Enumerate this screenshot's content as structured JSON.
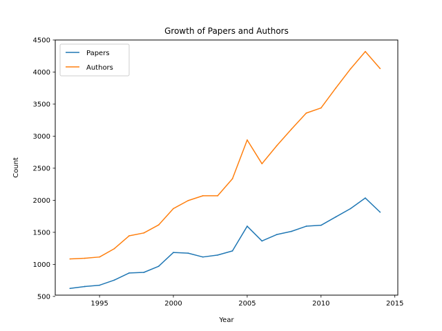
{
  "chart_data": {
    "type": "line",
    "title": "Growth of Papers and Authors",
    "xlabel": "Year",
    "ylabel": "Count",
    "xlim": [
      1992.0,
      2015.2
    ],
    "ylim": [
      520,
      4500
    ],
    "xticks": [
      1995,
      2000,
      2005,
      2010,
      2015
    ],
    "yticks": [
      500,
      1000,
      1500,
      2000,
      2500,
      3000,
      3500,
      4000,
      4500
    ],
    "legend": "top-left",
    "grid": false,
    "x": [
      1993,
      1994,
      1995,
      1996,
      1997,
      1998,
      1999,
      2000,
      2001,
      2002,
      2003,
      2004,
      2005,
      2006,
      2007,
      2008,
      2009,
      2010,
      2011,
      2012,
      2013,
      2014
    ],
    "series": [
      {
        "name": "Papers",
        "color": "#1f77b4",
        "values": [
          625,
          655,
          675,
          755,
          865,
          875,
          970,
          1185,
          1175,
          1115,
          1145,
          1210,
          1595,
          1365,
          1465,
          1515,
          1595,
          1610,
          1740,
          1870,
          2035,
          1815
        ]
      },
      {
        "name": "Authors",
        "color": "#ff7f0e",
        "values": [
          1085,
          1095,
          1115,
          1245,
          1445,
          1490,
          1615,
          1870,
          1995,
          2070,
          2070,
          2335,
          2940,
          2570,
          2850,
          3110,
          3360,
          3440,
          3750,
          4050,
          4320,
          4055
        ]
      }
    ]
  }
}
